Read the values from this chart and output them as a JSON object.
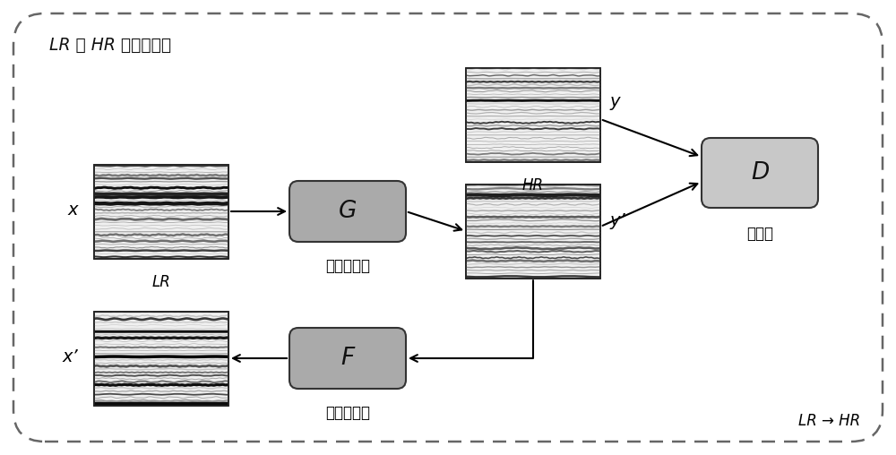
{
  "bg_color": "#ffffff",
  "box_fill_G": "#aaaaaa",
  "box_fill_F": "#aaaaaa",
  "box_fill_D": "#c8c8c8",
  "title_text": "LR 与 HR 是不配对的",
  "label_LR": "LR",
  "label_HR": "HR",
  "label_x": "x",
  "label_xprime": "x’",
  "label_y": "y",
  "label_yprime": "y’",
  "label_G": "G",
  "label_F": "F",
  "label_D": "D",
  "label_G_sub": "前向生成器",
  "label_F_sub": "反向生成器",
  "label_D_sub": "判别器",
  "label_bottom_right": "LR → HR",
  "arrow_color": "#000000"
}
